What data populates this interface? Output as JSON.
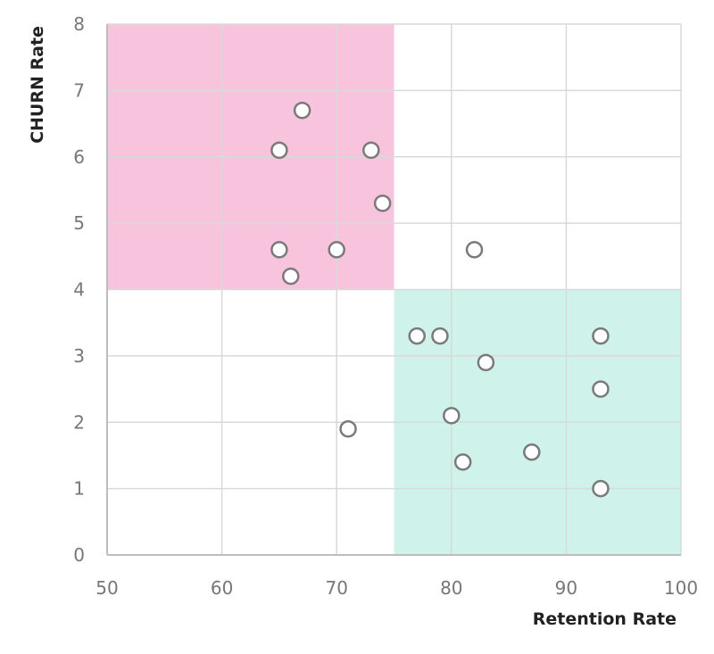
{
  "chart_data": {
    "type": "scatter",
    "title": "",
    "xlabel": "Retention Rate",
    "ylabel": "CHURN Rate",
    "xlim": [
      50,
      100
    ],
    "ylim": [
      0,
      8
    ],
    "x_ticks": [
      "50",
      "60",
      "70",
      "80",
      "90",
      "100"
    ],
    "y_ticks": [
      "0",
      "1",
      "2",
      "3",
      "4",
      "5",
      "6",
      "7",
      "8"
    ],
    "grid": true,
    "quadrants": [
      {
        "x_range": [
          50,
          75
        ],
        "y_range": [
          4,
          8
        ],
        "color": "#f8c4dd"
      },
      {
        "x_range": [
          75,
          100
        ],
        "y_range": [
          0,
          4
        ],
        "color": "#cff2ea"
      }
    ],
    "series": [
      {
        "marker": "open-circle",
        "color": "#7a7a7a",
        "points": [
          {
            "x": 67,
            "y": 6.7
          },
          {
            "x": 65,
            "y": 6.1
          },
          {
            "x": 73,
            "y": 6.1
          },
          {
            "x": 74,
            "y": 5.3
          },
          {
            "x": 65,
            "y": 4.6
          },
          {
            "x": 70,
            "y": 4.6
          },
          {
            "x": 66,
            "y": 4.2
          },
          {
            "x": 82,
            "y": 4.6
          },
          {
            "x": 77,
            "y": 3.3
          },
          {
            "x": 79,
            "y": 3.3
          },
          {
            "x": 93,
            "y": 3.3
          },
          {
            "x": 83,
            "y": 2.9
          },
          {
            "x": 93,
            "y": 2.5
          },
          {
            "x": 80,
            "y": 2.1
          },
          {
            "x": 71,
            "y": 1.9
          },
          {
            "x": 87,
            "y": 1.55
          },
          {
            "x": 81,
            "y": 1.4
          },
          {
            "x": 93,
            "y": 1.0
          }
        ]
      }
    ],
    "colors": {
      "grid": "#d9d9d9",
      "axis": "#bdbdbd",
      "marker_fill": "#ffffff",
      "marker_stroke": "#7a7a7a"
    }
  }
}
